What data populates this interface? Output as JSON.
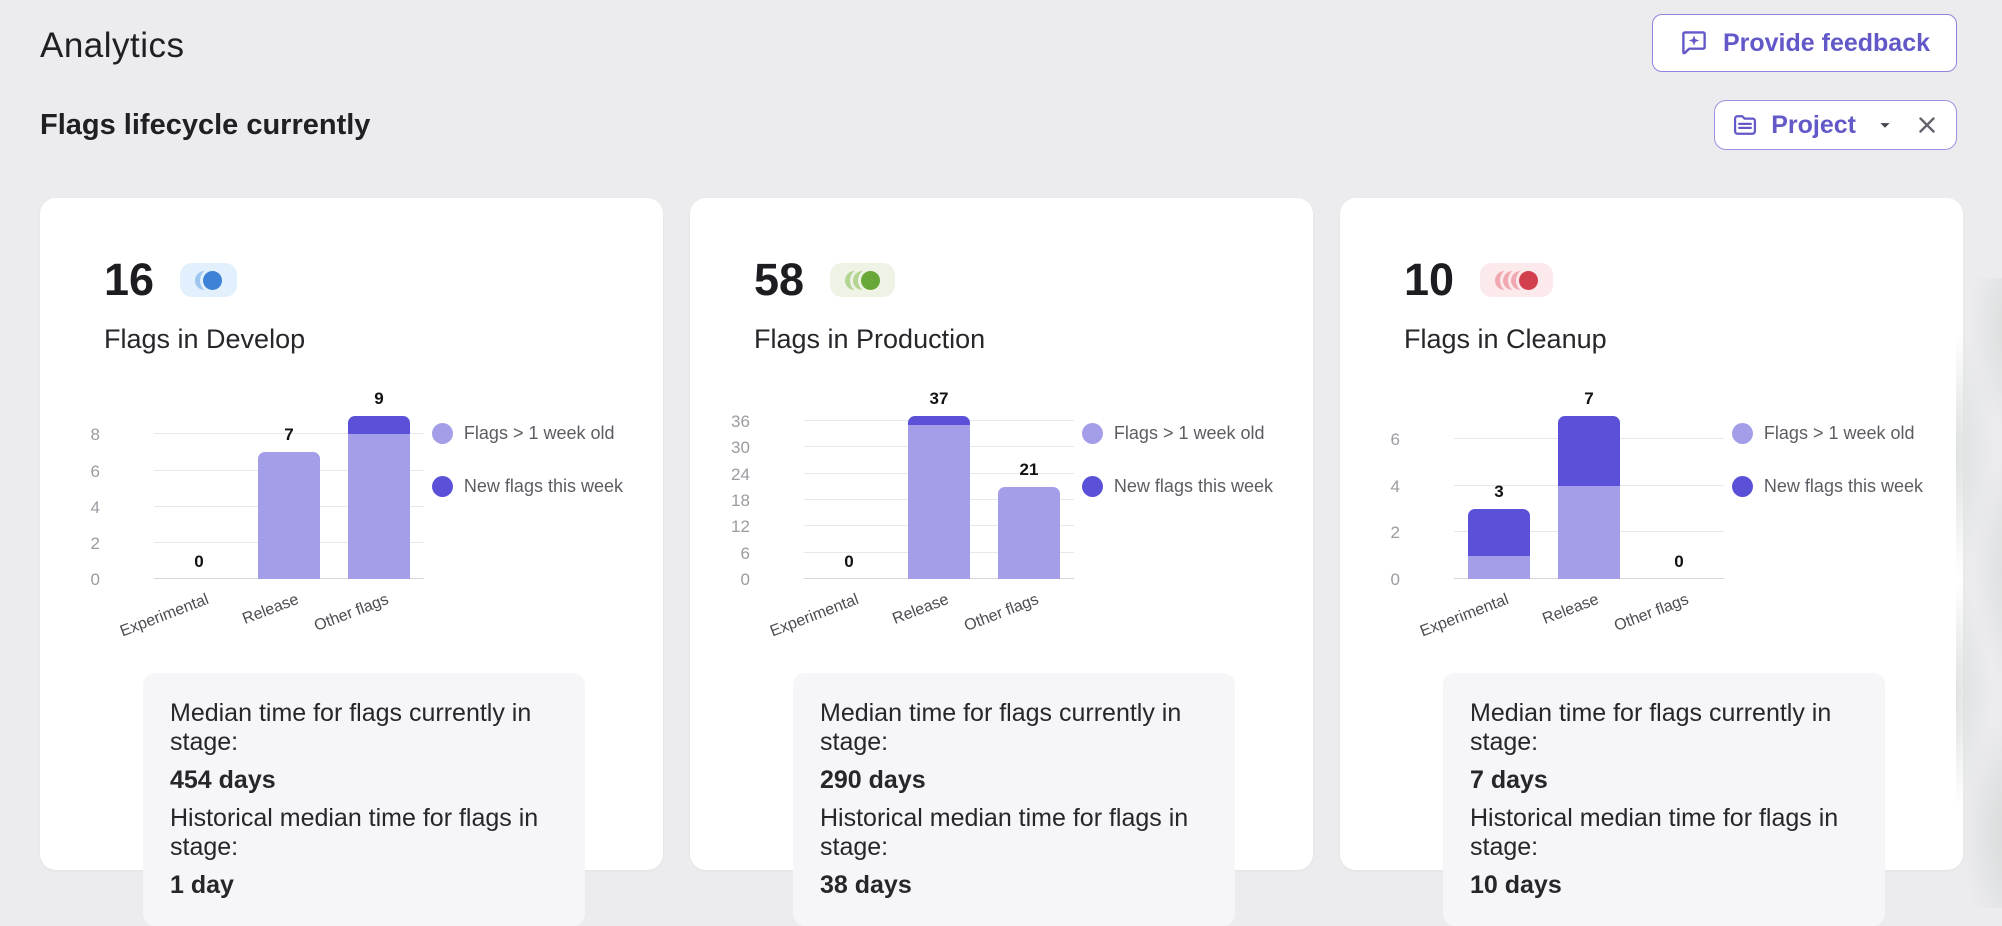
{
  "header": {
    "title": "Analytics",
    "feedback_label": "Provide feedback"
  },
  "section": {
    "title": "Flags lifecycle currently",
    "filter_label": "Project"
  },
  "legend": {
    "old": "Flags > 1 week old",
    "new": "New flags this week"
  },
  "colors": {
    "bar_old": "#A39EE7",
    "bar_new": "#5B51D8",
    "accent": "#6258C8"
  },
  "cards": [
    {
      "count": "16",
      "title": "Flags in Develop",
      "stage": {
        "icon": "develop-stage-icon",
        "bg": "#E2EFFC",
        "light": "#9DC6F0",
        "solid": "#3E82D8",
        "light_count": 1
      },
      "footer": {
        "current_label": "Median time for flags currently in stage:",
        "current_value": "454 days",
        "historical_label": "Historical median time for flags in stage:",
        "historical_value": "1 day"
      }
    },
    {
      "count": "58",
      "title": "Flags in Production",
      "stage": {
        "icon": "production-stage-icon",
        "bg": "#EFF3E6",
        "light": "#B4D494",
        "solid": "#68A838",
        "light_count": 2
      },
      "footer": {
        "current_label": "Median time for flags currently in stage:",
        "current_value": "290 days",
        "historical_label": "Historical median time for flags in stage:",
        "historical_value": "38 days"
      }
    },
    {
      "count": "10",
      "title": "Flags in Cleanup",
      "stage": {
        "icon": "cleanup-stage-icon",
        "bg": "#FBE9EB",
        "light": "#F0A9B0",
        "solid": "#D23F4D",
        "light_count": 3
      },
      "footer": {
        "current_label": "Median time for flags currently in stage:",
        "current_value": "7 days",
        "historical_label": "Historical median time for flags in stage:",
        "historical_value": "10 days"
      }
    }
  ],
  "chart_data": [
    {
      "type": "bar",
      "stacked": true,
      "title": "Flags in Develop",
      "categories": [
        "Experimental",
        "Release",
        "Other flags"
      ],
      "series": [
        {
          "name": "Flags > 1 week old",
          "values": [
            0,
            7,
            8
          ]
        },
        {
          "name": "New flags this week",
          "values": [
            0,
            0,
            1
          ]
        }
      ],
      "totals": [
        0,
        7,
        9
      ],
      "yticks": [
        0,
        2,
        4,
        6,
        8
      ],
      "ylim": [
        0,
        9.4
      ],
      "grid": true,
      "legend_position": "right"
    },
    {
      "type": "bar",
      "stacked": true,
      "title": "Flags in Production",
      "categories": [
        "Experimental",
        "Release",
        "Other flags"
      ],
      "series": [
        {
          "name": "Flags > 1 week old",
          "values": [
            0,
            35,
            21
          ]
        },
        {
          "name": "New flags this week",
          "values": [
            0,
            2,
            0
          ]
        }
      ],
      "totals": [
        0,
        37,
        21
      ],
      "yticks": [
        0,
        6,
        12,
        18,
        24,
        30,
        36
      ],
      "ylim": [
        0,
        38.7
      ],
      "grid": true,
      "legend_position": "right"
    },
    {
      "type": "bar",
      "stacked": true,
      "title": "Flags in Cleanup",
      "categories": [
        "Experimental",
        "Release",
        "Other flags"
      ],
      "series": [
        {
          "name": "Flags > 1 week old",
          "values": [
            1,
            4,
            0
          ]
        },
        {
          "name": "New flags this week",
          "values": [
            2,
            3,
            0
          ]
        }
      ],
      "totals": [
        3,
        7,
        0
      ],
      "yticks": [
        0,
        2,
        4,
        6
      ],
      "ylim": [
        0,
        7.3
      ],
      "grid": true,
      "legend_position": "right"
    }
  ]
}
